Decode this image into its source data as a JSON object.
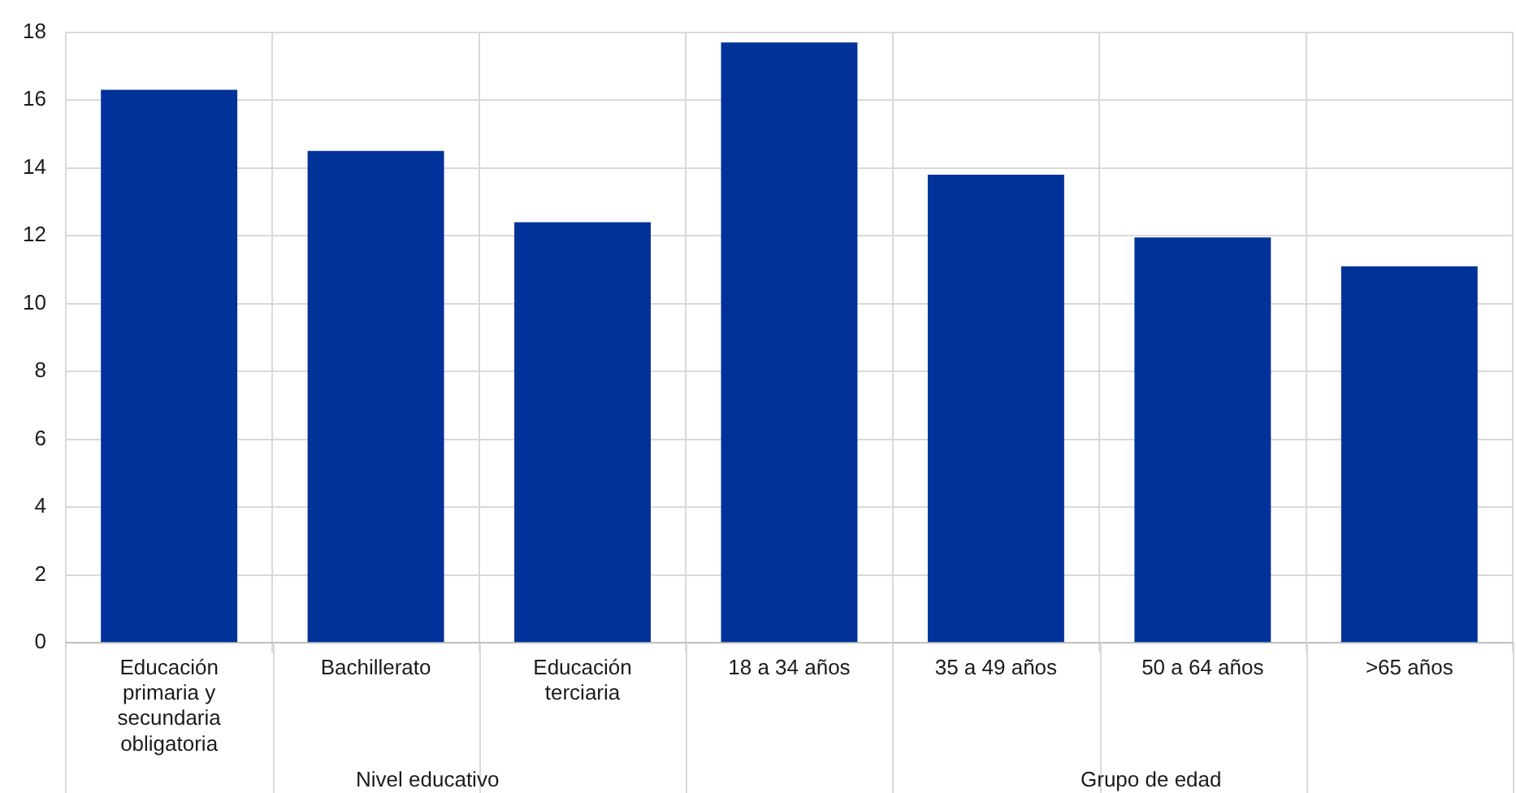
{
  "chart_data": {
    "type": "bar",
    "categories": [
      "Educación primaria y secundaria obligatoria",
      "Bachillerato",
      "Educación terciaria",
      "18 a 34 años",
      "35 a 49 años",
      "50 a 64 años",
      ">65 años"
    ],
    "values": [
      16.3,
      14.5,
      12.4,
      17.7,
      13.8,
      11.95,
      11.1
    ],
    "color": "#003299",
    "ylim": [
      0,
      18
    ],
    "yticks": [
      0,
      2,
      4,
      6,
      8,
      10,
      12,
      14,
      16,
      18
    ],
    "grid": true,
    "annotations": [
      "Nivel educativo",
      "Grupo de edad"
    ]
  }
}
